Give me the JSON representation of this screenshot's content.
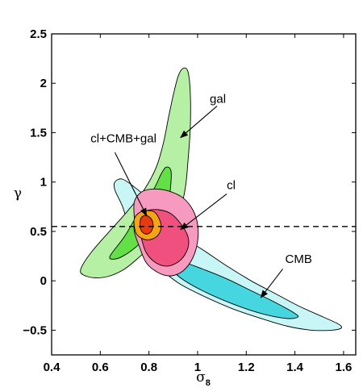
{
  "chart_data": {
    "type": "contour",
    "title": "",
    "xlabel": "σ",
    "xlabel_subscript": "8",
    "ylabel": "γ",
    "xlim": [
      0.4,
      1.65
    ],
    "ylim": [
      -0.75,
      2.5
    ],
    "xticks": [
      0.4,
      0.6,
      0.8,
      1,
      1.2,
      1.4,
      1.6
    ],
    "xtick_labels": [
      "0.4",
      "0.6",
      "0.8",
      "1",
      "1.2",
      "1.4",
      "1.6"
    ],
    "yticks": [
      -0.5,
      0,
      0.5,
      1,
      1.5,
      2,
      2.5
    ],
    "ytick_labels": [
      "−0.5",
      "0",
      "0.5",
      "1",
      "1.5",
      "2",
      "2.5"
    ],
    "grid": false,
    "reference_line": {
      "y": 0.55,
      "style": "dashed"
    },
    "regions": [
      {
        "name": "CMB",
        "levels": [
          {
            "level": "outer",
            "color": "#c8f5f5",
            "points": [
              [
                0.69,
                1.03
              ],
              [
                0.74,
                0.95
              ],
              [
                0.81,
                0.8
              ],
              [
                0.88,
                0.6
              ],
              [
                0.95,
                0.43
              ],
              [
                1.03,
                0.3
              ],
              [
                1.12,
                0.15
              ],
              [
                1.22,
                0.0
              ],
              [
                1.32,
                -0.13
              ],
              [
                1.42,
                -0.26
              ],
              [
                1.52,
                -0.37
              ],
              [
                1.58,
                -0.44
              ],
              [
                1.59,
                -0.48
              ],
              [
                1.55,
                -0.5
              ],
              [
                1.47,
                -0.5
              ],
              [
                1.37,
                -0.46
              ],
              [
                1.26,
                -0.38
              ],
              [
                1.14,
                -0.28
              ],
              [
                1.02,
                -0.15
              ],
              [
                0.92,
                -0.02
              ],
              [
                0.84,
                0.14
              ],
              [
                0.77,
                0.32
              ],
              [
                0.72,
                0.55
              ],
              [
                0.69,
                0.76
              ],
              [
                0.66,
                0.92
              ],
              [
                0.66,
                1.0
              ]
            ]
          },
          {
            "level": "inner",
            "color": "#46d6e0",
            "points": [
              [
                0.92,
                0.2
              ],
              [
                1.02,
                0.12
              ],
              [
                1.12,
                0.02
              ],
              [
                1.22,
                -0.1
              ],
              [
                1.32,
                -0.22
              ],
              [
                1.4,
                -0.33
              ],
              [
                1.41,
                -0.37
              ],
              [
                1.36,
                -0.38
              ],
              [
                1.26,
                -0.33
              ],
              [
                1.14,
                -0.23
              ],
              [
                1.02,
                -0.1
              ],
              [
                0.93,
                0.03
              ],
              [
                0.9,
                0.12
              ]
            ]
          }
        ]
      },
      {
        "name": "gal",
        "levels": [
          {
            "level": "outer",
            "color": "#b6f0a4",
            "points": [
              [
                0.52,
                0.12
              ],
              [
                0.56,
                0.28
              ],
              [
                0.63,
                0.48
              ],
              [
                0.71,
                0.7
              ],
              [
                0.78,
                0.92
              ],
              [
                0.83,
                1.15
              ],
              [
                0.86,
                1.4
              ],
              [
                0.88,
                1.65
              ],
              [
                0.9,
                1.88
              ],
              [
                0.92,
                2.07
              ],
              [
                0.94,
                2.15
              ],
              [
                0.96,
                2.12
              ],
              [
                0.97,
                1.9
              ],
              [
                0.97,
                1.55
              ],
              [
                0.96,
                1.2
              ],
              [
                0.95,
                0.95
              ],
              [
                0.93,
                0.75
              ],
              [
                0.88,
                0.55
              ],
              [
                0.82,
                0.38
              ],
              [
                0.76,
                0.24
              ],
              [
                0.7,
                0.12
              ],
              [
                0.64,
                0.05
              ],
              [
                0.58,
                0.03
              ],
              [
                0.53,
                0.06
              ]
            ]
          },
          {
            "level": "inner",
            "color": "#63e046",
            "points": [
              [
                0.64,
                0.25
              ],
              [
                0.7,
                0.45
              ],
              [
                0.76,
                0.7
              ],
              [
                0.82,
                0.93
              ],
              [
                0.85,
                1.08
              ],
              [
                0.87,
                1.15
              ],
              [
                0.89,
                1.12
              ],
              [
                0.89,
                0.98
              ],
              [
                0.88,
                0.82
              ],
              [
                0.85,
                0.65
              ],
              [
                0.8,
                0.48
              ],
              [
                0.75,
                0.35
              ],
              [
                0.7,
                0.26
              ],
              [
                0.66,
                0.22
              ]
            ]
          }
        ]
      },
      {
        "name": "cl",
        "levels": [
          {
            "level": "outer",
            "color": "#f79ac0",
            "points": [
              [
                0.74,
                0.62
              ],
              [
                0.74,
                0.8
              ],
              [
                0.77,
                0.9
              ],
              [
                0.82,
                0.93
              ],
              [
                0.88,
                0.91
              ],
              [
                0.94,
                0.84
              ],
              [
                0.98,
                0.72
              ],
              [
                1.0,
                0.57
              ],
              [
                1.0,
                0.4
              ],
              [
                0.98,
                0.23
              ],
              [
                0.94,
                0.1
              ],
              [
                0.89,
                0.05
              ],
              [
                0.84,
                0.08
              ],
              [
                0.79,
                0.18
              ],
              [
                0.76,
                0.35
              ],
              [
                0.74,
                0.5
              ]
            ]
          },
          {
            "level": "inner",
            "color": "#f0507e",
            "points": [
              [
                0.76,
                0.66
              ],
              [
                0.79,
                0.71
              ],
              [
                0.84,
                0.72
              ],
              [
                0.89,
                0.68
              ],
              [
                0.93,
                0.58
              ],
              [
                0.96,
                0.45
              ],
              [
                0.96,
                0.33
              ],
              [
                0.93,
                0.21
              ],
              [
                0.88,
                0.15
              ],
              [
                0.83,
                0.18
              ],
              [
                0.79,
                0.28
              ],
              [
                0.77,
                0.42
              ],
              [
                0.76,
                0.55
              ]
            ]
          }
        ]
      },
      {
        "name": "cl+CMB+gal",
        "levels": [
          {
            "level": "outer",
            "color": "#f5a416",
            "points": [
              [
                0.74,
                0.63
              ],
              [
                0.76,
                0.69
              ],
              [
                0.79,
                0.71
              ],
              [
                0.82,
                0.7
              ],
              [
                0.84,
                0.64
              ],
              [
                0.85,
                0.55
              ],
              [
                0.84,
                0.47
              ],
              [
                0.81,
                0.42
              ],
              [
                0.78,
                0.42
              ],
              [
                0.75,
                0.47
              ],
              [
                0.74,
                0.55
              ]
            ]
          },
          {
            "level": "inner",
            "color": "#e83a10",
            "points": [
              [
                0.765,
                0.62
              ],
              [
                0.78,
                0.66
              ],
              [
                0.8,
                0.65
              ],
              [
                0.815,
                0.6
              ],
              [
                0.815,
                0.53
              ],
              [
                0.8,
                0.48
              ],
              [
                0.78,
                0.48
              ],
              [
                0.765,
                0.53
              ]
            ]
          }
        ]
      }
    ],
    "annotations": [
      {
        "text": "gal",
        "text_at": [
          1.05,
          1.8
        ],
        "arrow_from": [
          1.08,
          1.77
        ],
        "arrow_to": [
          0.93,
          1.45
        ]
      },
      {
        "text": "cl+CMB+gal",
        "text_at": [
          0.56,
          1.4
        ],
        "arrow_from": [
          0.66,
          1.3
        ],
        "arrow_to": [
          0.79,
          0.66
        ]
      },
      {
        "text": "cl",
        "text_at": [
          1.12,
          0.93
        ],
        "arrow_from": [
          1.12,
          0.88
        ],
        "arrow_to": [
          0.93,
          0.52
        ]
      },
      {
        "text": "CMB",
        "text_at": [
          1.36,
          0.18
        ],
        "arrow_from": [
          1.35,
          0.12
        ],
        "arrow_to": [
          1.26,
          -0.17
        ]
      }
    ]
  }
}
